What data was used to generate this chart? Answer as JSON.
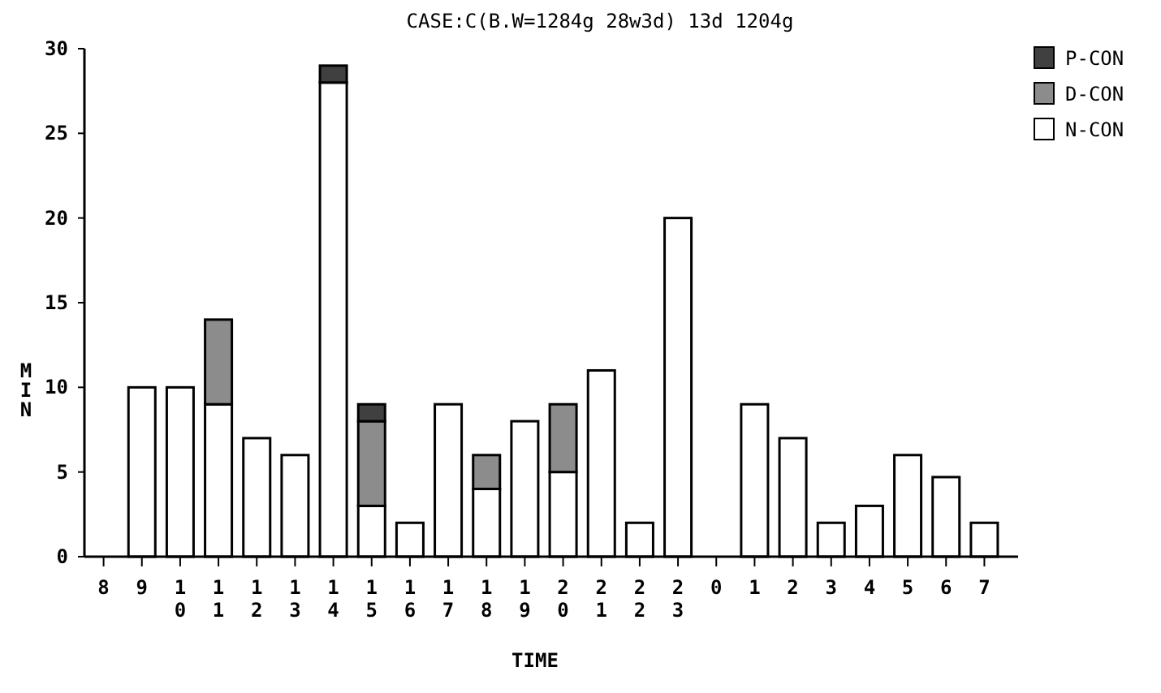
{
  "chart_data": {
    "type": "bar",
    "title": "CASE:C(B.W=1284g 28w3d) 13d 1204g",
    "xlabel": "TIME",
    "ylabel": "MIN",
    "categories": [
      "8",
      "9",
      "10",
      "11",
      "12",
      "13",
      "14",
      "15",
      "16",
      "17",
      "18",
      "19",
      "20",
      "21",
      "22",
      "23",
      "0",
      "1",
      "2",
      "3",
      "4",
      "5",
      "6",
      "7"
    ],
    "stacked": true,
    "series": [
      {
        "name": "N-CON",
        "color": "#ffffff",
        "values": [
          0,
          10,
          10,
          9,
          7,
          6,
          28,
          3,
          2,
          9,
          4,
          8,
          5,
          11,
          2,
          20,
          0,
          9,
          7,
          2,
          3,
          6,
          4.7,
          2
        ]
      },
      {
        "name": "D-CON",
        "color": "#8c8c8c",
        "values": [
          0,
          0,
          0,
          5,
          0,
          0,
          0,
          5,
          0,
          0,
          2,
          0,
          4,
          0,
          0,
          0,
          0,
          0,
          0,
          0,
          0,
          0,
          0,
          0
        ]
      },
      {
        "name": "P-CON",
        "color": "#404040",
        "values": [
          0,
          0,
          0,
          0,
          0,
          0,
          1,
          1,
          0,
          0,
          0,
          0,
          0,
          0,
          0,
          0,
          0,
          0,
          0,
          0,
          0,
          0,
          0,
          0
        ]
      }
    ],
    "ylim": [
      0,
      30
    ],
    "yticks": [
      0,
      5,
      10,
      15,
      20,
      25,
      30
    ],
    "grid": false,
    "legend": "top right"
  }
}
